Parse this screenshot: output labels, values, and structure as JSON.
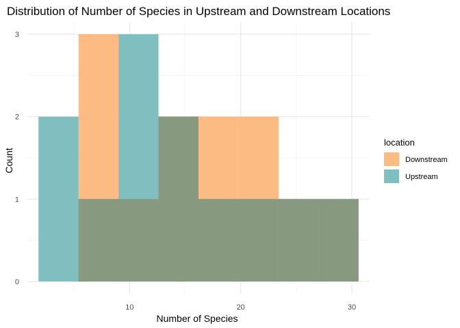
{
  "chart_data": {
    "type": "bar",
    "subtype": "histogram",
    "title": "Distribution of Number of Species in Upstream and Downstream Locations",
    "xlabel": "Number of Species",
    "ylabel": "Count",
    "xlim": [
      0.8,
      31.6
    ],
    "ylim": [
      -0.15,
      3.15
    ],
    "x_ticks": [
      10,
      20,
      30
    ],
    "y_ticks": [
      0,
      1,
      2,
      3
    ],
    "grid": true,
    "legend": {
      "title": "location",
      "position": "right",
      "items": [
        {
          "label": "Downstream",
          "color": "#FDBB84"
        },
        {
          "label": "Upstream",
          "color": "#7FBFBF"
        }
      ]
    },
    "overlap_color": "#87997F",
    "bin_width": 3.6,
    "series": [
      {
        "name": "Downstream",
        "color": "#FDBB84",
        "bins": [
          {
            "x0": 5.4,
            "x1": 9.0,
            "count": 3
          },
          {
            "x0": 9.0,
            "x1": 12.6,
            "count": 1
          },
          {
            "x0": 12.6,
            "x1": 16.2,
            "count": 2
          },
          {
            "x0": 16.2,
            "x1": 19.8,
            "count": 2
          },
          {
            "x0": 19.8,
            "x1": 23.4,
            "count": 2
          },
          {
            "x0": 23.4,
            "x1": 27.0,
            "count": 1
          },
          {
            "x0": 27.0,
            "x1": 30.6,
            "count": 1
          }
        ]
      },
      {
        "name": "Upstream",
        "color": "#7FBFBF",
        "bins": [
          {
            "x0": 1.8,
            "x1": 5.4,
            "count": 2
          },
          {
            "x0": 5.4,
            "x1": 9.0,
            "count": 1
          },
          {
            "x0": 9.0,
            "x1": 12.6,
            "count": 3
          },
          {
            "x0": 12.6,
            "x1": 16.2,
            "count": 2
          },
          {
            "x0": 16.2,
            "x1": 19.8,
            "count": 1
          },
          {
            "x0": 19.8,
            "x1": 23.4,
            "count": 1
          },
          {
            "x0": 23.4,
            "x1": 27.0,
            "count": 1
          },
          {
            "x0": 27.0,
            "x1": 30.6,
            "count": 1
          }
        ]
      }
    ]
  }
}
